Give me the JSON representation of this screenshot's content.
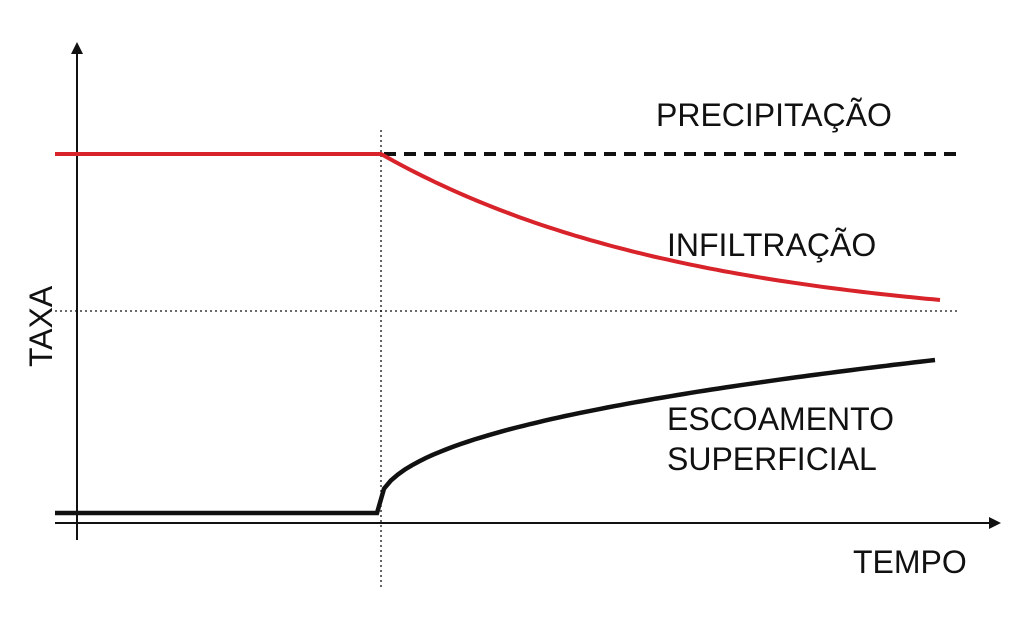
{
  "chart_data": {
    "type": "line",
    "xlabel": "TEMPO",
    "ylabel": "TAXA",
    "grid": false,
    "series": [
      {
        "name": "PRECIPITAÇÃO",
        "color": "#111111",
        "shape": "constant level, dashed after the threshold time"
      },
      {
        "name": "INFILTRAÇÃO",
        "color": "#d8232a",
        "shape": "equal to precipitation until threshold, then decays toward a limiting rate"
      },
      {
        "name": "ESCOAMENTO SUPERFICIAL",
        "color": "#111111",
        "shape": "near zero until threshold, then rises"
      }
    ]
  },
  "labels": {
    "precipitation": "PRECIPITAÇÃO",
    "infiltration": "INFILTRAÇÃO",
    "runoff_line1": "ESCOAMENTO",
    "runoff_line2": "SUPERFICIAL",
    "x_axis": "TEMPO",
    "y_axis": "TAXA"
  },
  "colors": {
    "infiltration": "#d8232a",
    "ink": "#111111"
  }
}
